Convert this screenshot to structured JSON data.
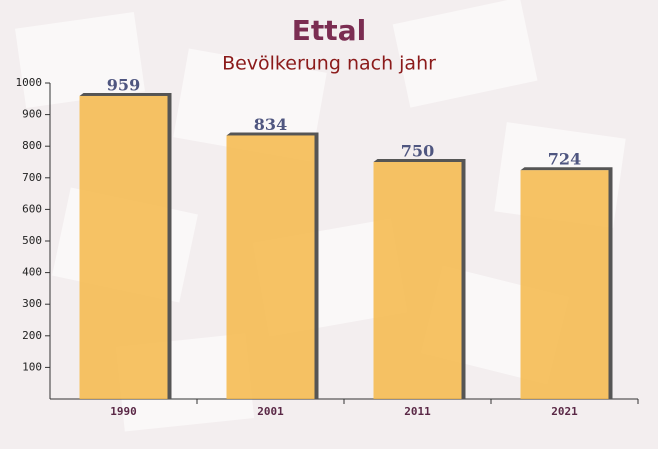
{
  "chart_data": {
    "type": "bar",
    "title": "Ettal",
    "subtitle": "Bevölkerung nach jahr",
    "categories": [
      "1990",
      "2001",
      "2011",
      "2021"
    ],
    "values": [
      959,
      834,
      750,
      724
    ],
    "color": "#f5b94a",
    "ylim": [
      0,
      1000
    ],
    "yticks": [
      100,
      200,
      300,
      400,
      500,
      600,
      700,
      800,
      900,
      1000
    ]
  }
}
